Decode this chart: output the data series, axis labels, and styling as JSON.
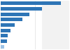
{
  "values": [
    88,
    60,
    42,
    32,
    20,
    14,
    10,
    9,
    5
  ],
  "bar_color": "#2e75b6",
  "last_bar_color": "#9dc3e6",
  "background_color": "#ffffff",
  "panel_color": "#f2f2f2",
  "grid_color": "#d9d9d9",
  "xlim": [
    0,
    100
  ],
  "n_bars": 9,
  "bar_height": 0.65,
  "figsize": [
    1.0,
    0.71
  ],
  "dpi": 100
}
